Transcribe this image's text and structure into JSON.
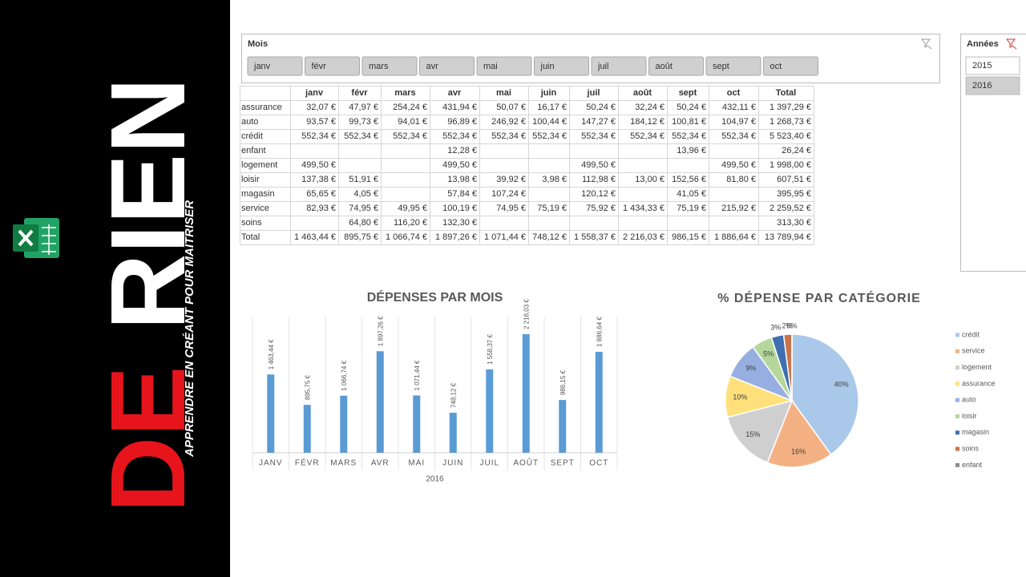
{
  "banner": {
    "words": [
      "DE",
      "RIEN"
    ],
    "subtitle": "APPRENDRE EN CRÉANT POUR MAÎTRISER"
  },
  "slicer_months": {
    "title": "Mois",
    "items": [
      "janv",
      "févr",
      "mars",
      "avr",
      "mai",
      "juin",
      "juil",
      "août",
      "sept",
      "oct"
    ]
  },
  "slicer_years": {
    "title": "Années",
    "items": [
      "2015",
      "2016"
    ],
    "selected_index": 1
  },
  "table": {
    "columns": [
      "janv",
      "févr",
      "mars",
      "avr",
      "mai",
      "juin",
      "juil",
      "août",
      "sept",
      "oct",
      "Total"
    ],
    "rows": [
      [
        "assurance",
        "32,07 €",
        "47,97 €",
        "254,24 €",
        "431,94 €",
        "50,07 €",
        "16,17 €",
        "50,24 €",
        "32,24 €",
        "50,24 €",
        "432,11 €",
        "1 397,29 €"
      ],
      [
        "auto",
        "93,57 €",
        "99,73 €",
        "94,01 €",
        "96,89 €",
        "246,92 €",
        "100,44 €",
        "147,27 €",
        "184,12 €",
        "100,81 €",
        "104,97 €",
        "1 268,73 €"
      ],
      [
        "crédit",
        "552,34 €",
        "552,34 €",
        "552,34 €",
        "552,34 €",
        "552,34 €",
        "552,34 €",
        "552,34 €",
        "552,34 €",
        "552,34 €",
        "552,34 €",
        "5 523,40 €"
      ],
      [
        "enfant",
        null,
        null,
        null,
        "12,28 €",
        null,
        null,
        null,
        null,
        "13,96 €",
        null,
        "26,24 €"
      ],
      [
        "logement",
        "499,50 €",
        null,
        null,
        "499,50 €",
        null,
        null,
        "499,50 €",
        null,
        null,
        "499,50 €",
        "1 998,00 €"
      ],
      [
        "loisir",
        "137,38 €",
        "51,91 €",
        null,
        "13,98 €",
        "39,92 €",
        "3,98 €",
        "112,98 €",
        "13,00 €",
        "152,56 €",
        "81,80 €",
        "607,51 €"
      ],
      [
        "magasin",
        "65,65 €",
        "4,05 €",
        null,
        "57,84 €",
        "107,24 €",
        null,
        "120,12 €",
        null,
        "41,05 €",
        null,
        "395,95 €"
      ],
      [
        "service",
        "82,93 €",
        "74,95 €",
        "49,95 €",
        "100,19 €",
        "74,95 €",
        "75,19 €",
        "75,92 €",
        "1 434,33 €",
        "75,19 €",
        "215,92 €",
        "2 259,52 €"
      ],
      [
        "soins",
        null,
        "64,80 €",
        "116,20 €",
        "132,30 €",
        null,
        null,
        null,
        null,
        null,
        null,
        "313,30 €"
      ],
      [
        "Total",
        "1 463,44 €",
        "895,75 €",
        "1 066,74 €",
        "1 897,26 €",
        "1 071,44 €",
        "748,12 €",
        "1 558,37 €",
        "2 216,03 €",
        "986,15 €",
        "1 886,64 €",
        "13 789,94 €"
      ]
    ]
  },
  "chart_data": [
    {
      "type": "bar",
      "title": "DÉPENSES PAR MOIS",
      "x_label": "2016",
      "categories": [
        "JANV",
        "FÉVR",
        "MARS",
        "AVR",
        "MAI",
        "JUIN",
        "JUIL",
        "AOÛT",
        "SEPT",
        "OCT"
      ],
      "values": [
        1463.44,
        895.75,
        1066.74,
        1897.26,
        1071.44,
        748.12,
        1558.37,
        2216.03,
        986.15,
        1886.64
      ],
      "value_labels": [
        "1 463,44 €",
        "895,75 €",
        "1 066,74 €",
        "1 897,26 €",
        "1 071,44 €",
        "748,12 €",
        "1 558,37 €",
        "2 216,03 €",
        "986,15 €",
        "1 886,64 €"
      ],
      "color": "#5b9bd5"
    },
    {
      "type": "pie",
      "title": "% DÉPENSE PAR CATÉGORIE",
      "categories": [
        "crédit",
        "service",
        "logement",
        "assurance",
        "auto",
        "loisir",
        "magasin",
        "soins",
        "enfant"
      ],
      "values": [
        40,
        16,
        15,
        10,
        9,
        5,
        3,
        2,
        0
      ],
      "value_labels": [
        "40%",
        "16%",
        "15%",
        "10%",
        "9%",
        "5%",
        "3%",
        "2%",
        "0%"
      ],
      "colors": [
        "#a9c8ea",
        "#f4b183",
        "#cfcfcf",
        "#ffe07a",
        "#97afe0",
        "#b5d79b",
        "#3f6fb0",
        "#c8734a",
        "#8c8c8c"
      ]
    }
  ]
}
